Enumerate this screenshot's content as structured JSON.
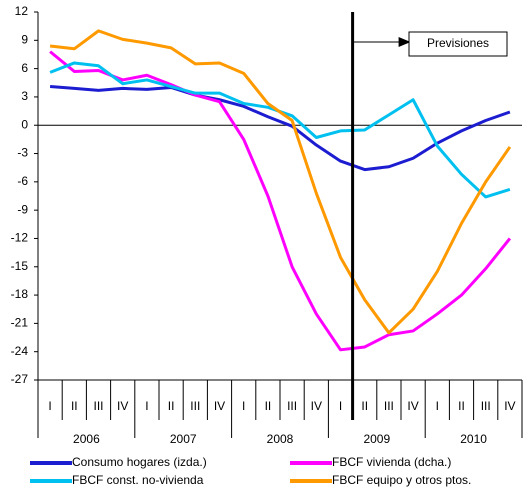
{
  "chart_data": {
    "type": "line",
    "categories": [
      "I",
      "II",
      "III",
      "IV",
      "I",
      "II",
      "III",
      "IV",
      "I",
      "II",
      "III",
      "IV",
      "I",
      "II",
      "III",
      "IV",
      "I",
      "II",
      "III",
      "IV"
    ],
    "year_groups": [
      "2006",
      "2007",
      "2008",
      "2009",
      "2010"
    ],
    "series": [
      {
        "name": "Consumo hogares (izda.)",
        "color": "#1c1cd0",
        "values": [
          4.1,
          3.9,
          3.7,
          3.9,
          3.8,
          4.0,
          3.2,
          2.7,
          2.0,
          0.9,
          -0.1,
          -2.1,
          -3.8,
          -4.7,
          -4.4,
          -3.5,
          -1.9,
          -0.6,
          0.5,
          1.4
        ]
      },
      {
        "name": "FBCF vivienda (dcha.)",
        "color": "#ff00ff",
        "values": [
          7.8,
          5.7,
          5.8,
          4.8,
          5.3,
          4.3,
          3.2,
          2.5,
          -1.5,
          -7.5,
          -15,
          -20,
          -23.8,
          -23.5,
          -22.2,
          -21.8,
          -20,
          -18,
          -15.2,
          -12
        ]
      },
      {
        "name": "FBCF const. no-vivienda",
        "color": "#00c0f0",
        "values": [
          5.6,
          6.6,
          6.3,
          4.4,
          4.8,
          4.1,
          3.4,
          3.4,
          2.3,
          1.9,
          1.0,
          -1.3,
          -0.6,
          -0.5,
          1.1,
          2.7,
          -2.2,
          -5.2,
          -7.6,
          -6.8
        ]
      },
      {
        "name": "FBCF equipo y otros ptos.",
        "color": "#ff9900",
        "values": [
          8.4,
          8.1,
          10.0,
          9.1,
          8.7,
          8.2,
          6.5,
          6.6,
          5.5,
          2.3,
          0.5,
          -7.2,
          -14,
          -18.5,
          -22.0,
          -19.5,
          -15.5,
          -10.4,
          -6,
          -2.3
        ]
      }
    ],
    "ylim": [
      -27,
      12
    ],
    "yticks": [
      12,
      9,
      6,
      3,
      0,
      -3,
      -6,
      -9,
      -12,
      -15,
      -18,
      -21,
      -24,
      -27
    ],
    "forecast_start_index": 13,
    "annotation": "Previsiones",
    "grid": false
  }
}
